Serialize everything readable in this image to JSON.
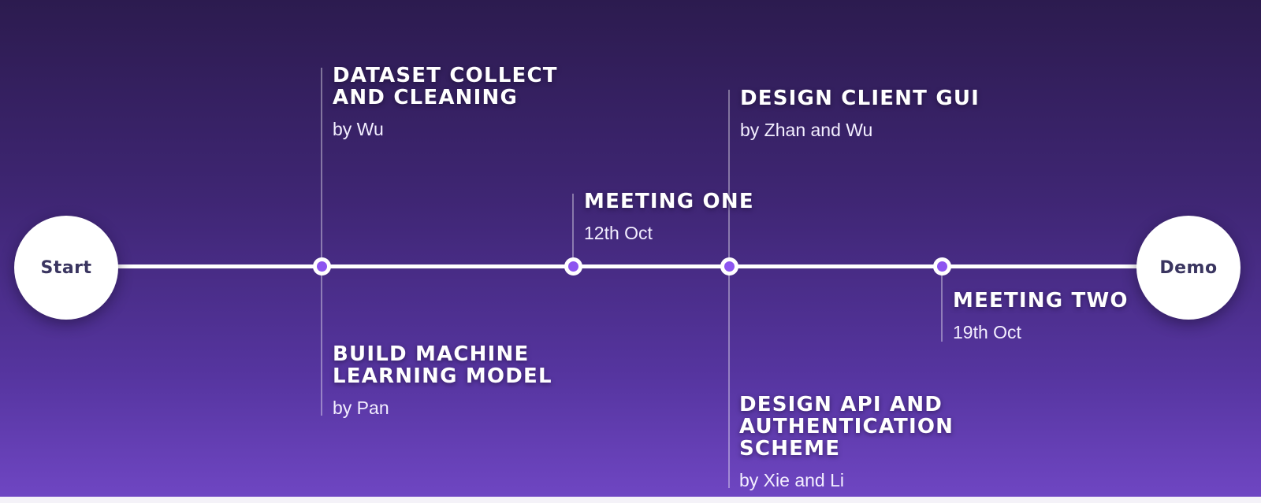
{
  "timeline": {
    "start_label": "Start",
    "end_label": "Demo",
    "colors": {
      "node_fill": "#8d55f0",
      "line": "#ffffff",
      "endpoint_text": "#3a3560"
    },
    "events": [
      {
        "title": "DATASET COLLECT AND CLEANING",
        "subtitle": "by Wu"
      },
      {
        "title": "BUILD MACHINE LEARNING MODEL",
        "subtitle": "by Pan"
      },
      {
        "title": "MEETING ONE",
        "subtitle": "12th Oct"
      },
      {
        "title": "DESIGN CLIENT GUI",
        "subtitle": "by Zhan and Wu"
      },
      {
        "title": "DESIGN API AND AUTHENTICATION SCHEME",
        "subtitle": "by Xie and Li"
      },
      {
        "title": "MEETING TWO",
        "subtitle": "19th Oct"
      }
    ]
  }
}
